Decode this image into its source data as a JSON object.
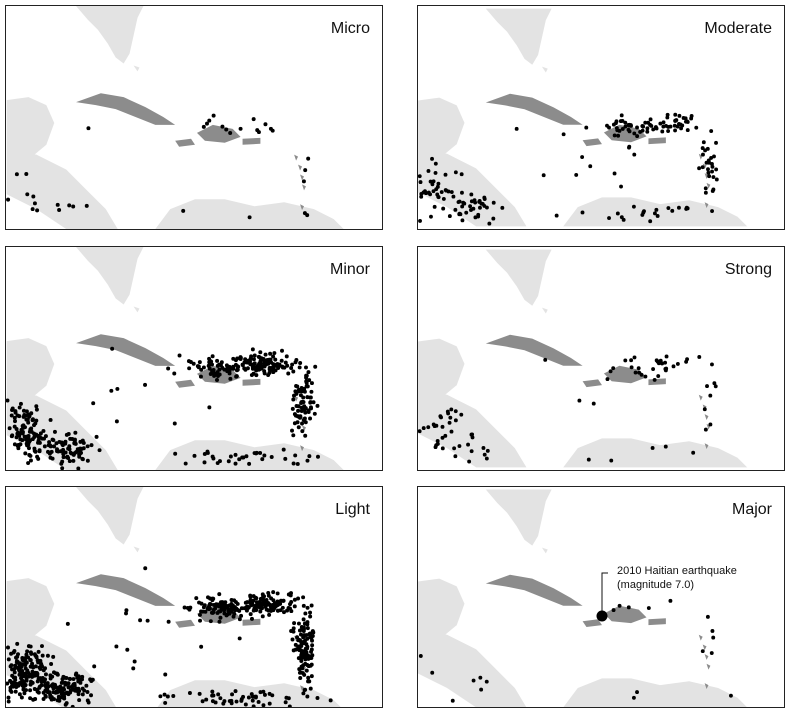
{
  "colors": {
    "land": "#e3e3e3",
    "islands": "#8c8c8c",
    "quakes": "#000000"
  },
  "panels": [
    {
      "title": "Micro",
      "density": 0.05
    },
    {
      "title": "Moderate",
      "density": 0.3
    },
    {
      "title": "Minor",
      "density": 0.7
    },
    {
      "title": "Strong",
      "density": 0.12
    },
    {
      "title": "Light",
      "density": 1.0
    },
    {
      "title": "Major",
      "density": 0.03
    }
  ],
  "annotation": {
    "line1": "2010 Haitian earthquake",
    "line2": "(magnitude 7.0)"
  }
}
